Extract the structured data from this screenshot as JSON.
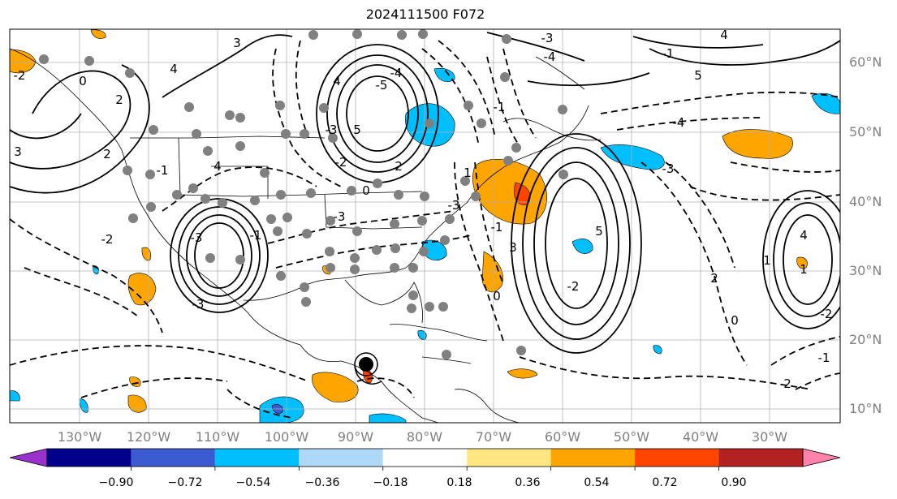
{
  "title": "2024111500 F072",
  "lat_labels": [
    "60°N",
    "50°N",
    "40°N",
    "30°N",
    "20°N",
    "10°N"
  ],
  "lon_labels": [
    "130°W",
    "120°W",
    "110°W",
    "100°W",
    "90°W",
    "80°W",
    "70°W",
    "60°W",
    "50°W",
    "40°W",
    "30°W"
  ],
  "colorbar": {
    "tick_labels": [
      "−0.90",
      "−0.72",
      "−0.54",
      "−0.36",
      "−0.18",
      "0.18",
      "0.36",
      "0.54",
      "0.72",
      "0.90"
    ],
    "colors": [
      "#9932CC",
      "#00008B",
      "#3A5BD1",
      "#00BFFF",
      "#ADD8F6",
      "#FFFFFF",
      "#FFE680",
      "#FFA500",
      "#FF4500",
      "#B22222",
      "#FF82AB"
    ],
    "extend": "both"
  },
  "contour_labels": [
    "3",
    "4",
    "2",
    "0",
    "-2",
    "2",
    "4",
    "-1",
    "-2",
    "-3",
    "-1",
    "-3",
    "4",
    "5",
    "-5",
    "-4",
    "-3",
    "-2",
    "0",
    "2",
    "1",
    "-3",
    "-3",
    "3",
    "5",
    "-2",
    "0",
    "-1",
    "-4",
    "-3",
    "5",
    "-1",
    "-4",
    "-3",
    "-1",
    "2",
    "4",
    "0",
    "1",
    "-2",
    "-1",
    "2",
    "1",
    "4",
    "3"
  ],
  "colors": {
    "land_outline": "#000000",
    "grid": "#b0b0b0",
    "axis_label": "#808080",
    "marker": "#808080",
    "storm_center": "#000000"
  }
}
